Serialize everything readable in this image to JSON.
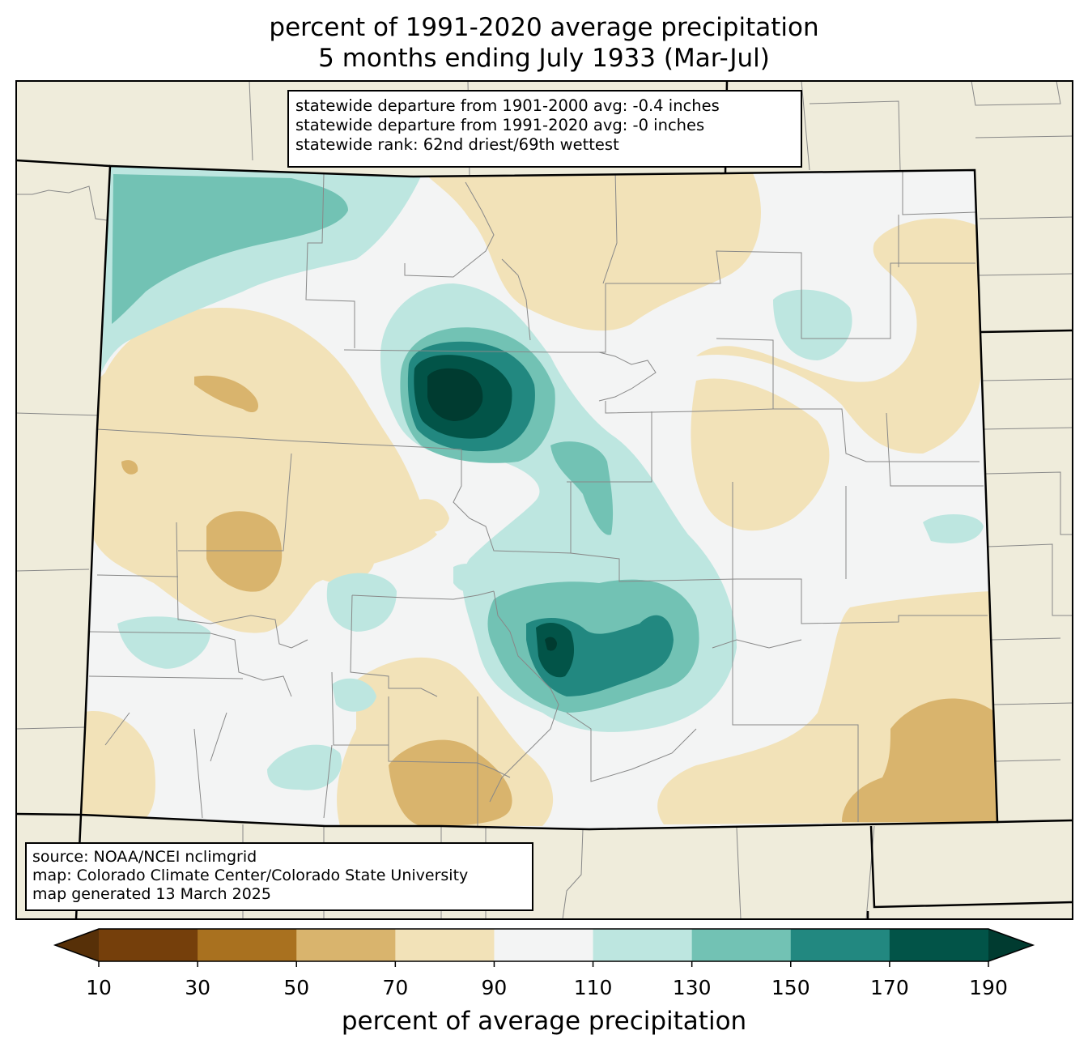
{
  "title": {
    "line1": "percent of 1991-2020 average precipitation",
    "line2": "5 months ending July 1933 (Mar-Jul)"
  },
  "stats": {
    "line1": "statewide departure from 1901-2000 avg: -0.4 inches",
    "line2": "statewide departure from 1991-2020 avg: -0 inches",
    "line3": "statewide rank: 62nd driest/69th wettest"
  },
  "credits": {
    "line1": "source: NOAA/NCEI nclimgrid",
    "line2": "map: Colorado Climate Center/Colorado State University",
    "line3": "map generated 13 March 2025"
  },
  "colorbar": {
    "label": "percent of average precipitation",
    "ticks": [
      "10",
      "30",
      "50",
      "70",
      "90",
      "110",
      "130",
      "150",
      "170",
      "190"
    ],
    "colors": [
      "#753f0b",
      "#a9711f",
      "#d9b46d",
      "#f2e2b8",
      "#f3f4f4",
      "#bde6e0",
      "#72c2b4",
      "#228880",
      "#025448"
    ],
    "under_color": "#573008",
    "over_color": "#003b30"
  },
  "colors": {
    "land_outside": "#efecdb",
    "state_border": "#000000",
    "county_lines": "#888888"
  }
}
